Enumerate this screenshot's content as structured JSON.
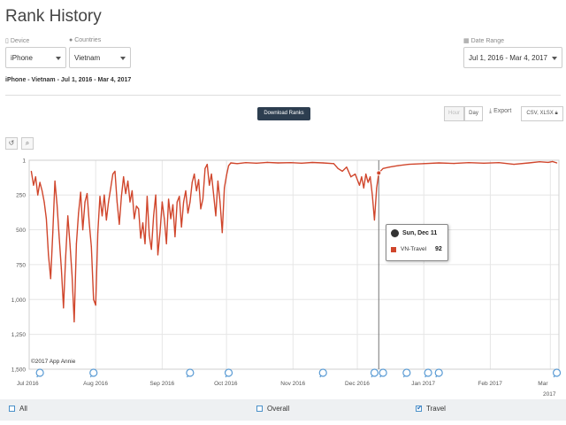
{
  "page": {
    "title": "Rank History",
    "subtitle": "iPhone - Vietnam - Jul 1, 2016 - Mar 4, 2017"
  },
  "filters": {
    "device": {
      "label": "Device",
      "value": "iPhone",
      "icon": "phone-icon"
    },
    "countries": {
      "label": "Countries",
      "value": "Vietnam",
      "icon": "globe-icon"
    },
    "date_range": {
      "label": "Date Range",
      "value": "Jul 1, 2016 - Mar 4, 2017",
      "icon": "calendar-icon"
    }
  },
  "toolbar": {
    "download_label": "Download Ranks",
    "hour_label": "Hour",
    "day_label": "Day",
    "export_label": "Export",
    "csv_label": "CSV, XLSX"
  },
  "chart_controls": {
    "reset_icon": "undo-icon",
    "zoom_icon": "zoom-icon"
  },
  "tooltip": {
    "date": "Sun, Dec 11",
    "series": "VN-Travel",
    "value": "92",
    "color": "#d0462c"
  },
  "copyright": "©2017 App Annie",
  "legend": [
    {
      "label": "All",
      "checked": false
    },
    {
      "label": "Overall",
      "checked": false
    },
    {
      "label": "Travel",
      "checked": true
    }
  ],
  "chart_data": {
    "type": "line",
    "title": "",
    "ylabel": "",
    "xlabel": "",
    "y_reversed": true,
    "ylim": [
      1500,
      1
    ],
    "y_ticks": [
      "1",
      "250",
      "500",
      "750",
      "1,000",
      "1,250",
      "1,500"
    ],
    "x_tick_labels": [
      "Jul 2016",
      "Aug 2016",
      "Sep 2016",
      "Oct 2016",
      "Nov 2016",
      "Dec 2016",
      "Jan 2017",
      "Feb 2017",
      "Mar"
    ],
    "x_year_note": "2017",
    "grid": true,
    "series": [
      {
        "name": "VN-Travel",
        "color": "#d0462c",
        "points": [
          [
            "2016-07-02",
            80
          ],
          [
            "2016-07-03",
            180
          ],
          [
            "2016-07-04",
            120
          ],
          [
            "2016-07-05",
            250
          ],
          [
            "2016-07-06",
            160
          ],
          [
            "2016-07-07",
            220
          ],
          [
            "2016-07-08",
            300
          ],
          [
            "2016-07-09",
            420
          ],
          [
            "2016-07-10",
            680
          ],
          [
            "2016-07-11",
            850
          ],
          [
            "2016-07-12",
            520
          ],
          [
            "2016-07-13",
            150
          ],
          [
            "2016-07-14",
            320
          ],
          [
            "2016-07-15",
            560
          ],
          [
            "2016-07-16",
            780
          ],
          [
            "2016-07-17",
            1060
          ],
          [
            "2016-07-18",
            700
          ],
          [
            "2016-07-19",
            400
          ],
          [
            "2016-07-20",
            600
          ],
          [
            "2016-07-21",
            830
          ],
          [
            "2016-07-22",
            1160
          ],
          [
            "2016-07-23",
            600
          ],
          [
            "2016-07-24",
            380
          ],
          [
            "2016-07-25",
            230
          ],
          [
            "2016-07-26",
            500
          ],
          [
            "2016-07-27",
            300
          ],
          [
            "2016-07-28",
            240
          ],
          [
            "2016-07-29",
            450
          ],
          [
            "2016-07-30",
            620
          ],
          [
            "2016-07-31",
            1000
          ],
          [
            "2016-08-01",
            1040
          ],
          [
            "2016-08-02",
            520
          ],
          [
            "2016-08-03",
            260
          ],
          [
            "2016-08-04",
            400
          ],
          [
            "2016-08-05",
            250
          ],
          [
            "2016-08-06",
            430
          ],
          [
            "2016-08-07",
            300
          ],
          [
            "2016-08-08",
            200
          ],
          [
            "2016-08-09",
            100
          ],
          [
            "2016-08-10",
            80
          ],
          [
            "2016-08-11",
            300
          ],
          [
            "2016-08-12",
            460
          ],
          [
            "2016-08-13",
            260
          ],
          [
            "2016-08-14",
            120
          ],
          [
            "2016-08-15",
            240
          ],
          [
            "2016-08-16",
            150
          ],
          [
            "2016-08-17",
            300
          ],
          [
            "2016-08-18",
            220
          ],
          [
            "2016-08-19",
            420
          ],
          [
            "2016-08-20",
            330
          ],
          [
            "2016-08-21",
            350
          ],
          [
            "2016-08-22",
            560
          ],
          [
            "2016-08-23",
            450
          ],
          [
            "2016-08-24",
            600
          ],
          [
            "2016-08-25",
            260
          ],
          [
            "2016-08-26",
            540
          ],
          [
            "2016-08-27",
            640
          ],
          [
            "2016-08-28",
            400
          ],
          [
            "2016-08-29",
            250
          ],
          [
            "2016-08-30",
            680
          ],
          [
            "2016-08-31",
            520
          ],
          [
            "2016-09-01",
            300
          ],
          [
            "2016-09-02",
            420
          ],
          [
            "2016-09-03",
            600
          ],
          [
            "2016-09-04",
            280
          ],
          [
            "2016-09-05",
            420
          ],
          [
            "2016-09-06",
            320
          ],
          [
            "2016-09-07",
            550
          ],
          [
            "2016-09-08",
            300
          ],
          [
            "2016-09-09",
            260
          ],
          [
            "2016-09-10",
            480
          ],
          [
            "2016-09-11",
            300
          ],
          [
            "2016-09-12",
            220
          ],
          [
            "2016-09-13",
            380
          ],
          [
            "2016-09-14",
            300
          ],
          [
            "2016-09-15",
            160
          ],
          [
            "2016-09-16",
            100
          ],
          [
            "2016-09-17",
            220
          ],
          [
            "2016-09-18",
            140
          ],
          [
            "2016-09-19",
            350
          ],
          [
            "2016-09-20",
            280
          ],
          [
            "2016-09-21",
            60
          ],
          [
            "2016-09-22",
            30
          ],
          [
            "2016-09-23",
            180
          ],
          [
            "2016-09-24",
            100
          ],
          [
            "2016-09-25",
            250
          ],
          [
            "2016-09-26",
            400
          ],
          [
            "2016-09-27",
            150
          ],
          [
            "2016-09-28",
            300
          ],
          [
            "2016-09-29",
            520
          ],
          [
            "2016-09-30",
            200
          ],
          [
            "2016-10-01",
            110
          ],
          [
            "2016-10-02",
            40
          ],
          [
            "2016-10-03",
            20
          ],
          [
            "2016-10-06",
            25
          ],
          [
            "2016-10-10",
            18
          ],
          [
            "2016-10-15",
            22
          ],
          [
            "2016-10-20",
            16
          ],
          [
            "2016-10-25",
            20
          ],
          [
            "2016-10-31",
            18
          ],
          [
            "2016-11-05",
            22
          ],
          [
            "2016-11-10",
            17
          ],
          [
            "2016-11-15",
            20
          ],
          [
            "2016-11-20",
            25
          ],
          [
            "2016-11-22",
            60
          ],
          [
            "2016-11-24",
            80
          ],
          [
            "2016-11-26",
            50
          ],
          [
            "2016-11-28",
            120
          ],
          [
            "2016-11-30",
            100
          ],
          [
            "2016-12-02",
            180
          ],
          [
            "2016-12-03",
            120
          ],
          [
            "2016-12-04",
            200
          ],
          [
            "2016-12-05",
            100
          ],
          [
            "2016-12-06",
            160
          ],
          [
            "2016-12-07",
            120
          ],
          [
            "2016-12-08",
            250
          ],
          [
            "2016-12-09",
            430
          ],
          [
            "2016-12-10",
            200
          ],
          [
            "2016-12-11",
            92
          ],
          [
            "2016-12-13",
            60
          ],
          [
            "2016-12-16",
            50
          ],
          [
            "2016-12-20",
            40
          ],
          [
            "2016-12-25",
            30
          ],
          [
            "2017-01-01",
            25
          ],
          [
            "2017-01-08",
            20
          ],
          [
            "2017-01-15",
            24
          ],
          [
            "2017-01-22",
            18
          ],
          [
            "2017-01-29",
            22
          ],
          [
            "2017-02-05",
            18
          ],
          [
            "2017-02-12",
            30
          ],
          [
            "2017-02-19",
            20
          ],
          [
            "2017-02-24",
            12
          ],
          [
            "2017-02-28",
            16
          ],
          [
            "2017-03-02",
            10
          ],
          [
            "2017-03-04",
            20
          ]
        ]
      }
    ],
    "event_markers": [
      "2016-07-06",
      "2016-07-31",
      "2016-09-14",
      "2016-10-02",
      "2016-11-15",
      "2016-12-09",
      "2016-12-13",
      "2016-12-24",
      "2017-01-03",
      "2017-01-08",
      "2017-03-04"
    ],
    "crosshair_date": "2016-12-11"
  }
}
